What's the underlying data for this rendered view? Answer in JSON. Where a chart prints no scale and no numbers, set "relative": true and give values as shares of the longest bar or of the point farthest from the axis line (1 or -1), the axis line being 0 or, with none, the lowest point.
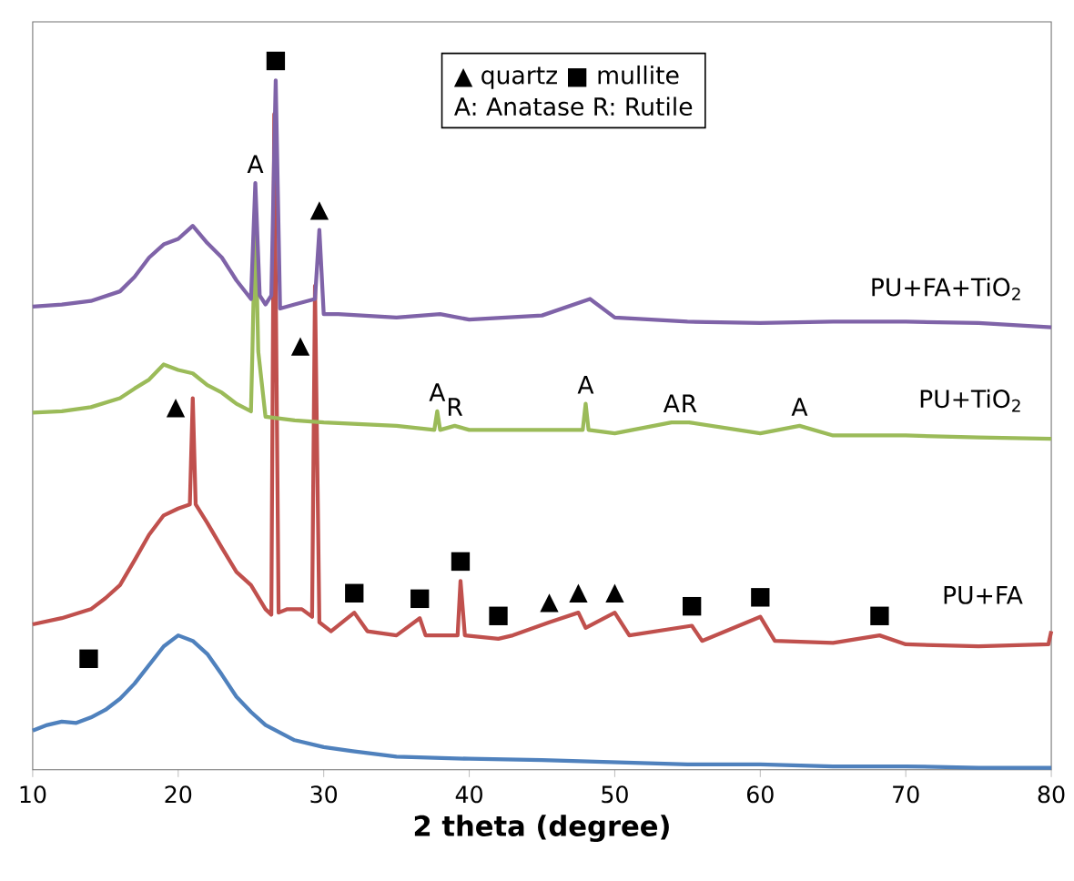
{
  "chart_data": {
    "type": "line",
    "relative": true,
    "xlabel": "2 theta (degree)",
    "xlim": [
      10,
      80
    ],
    "xticks": [
      10,
      20,
      30,
      40,
      50,
      60,
      70,
      80
    ],
    "tick_labels": "x",
    "series": [
      {
        "name": "PU+FA+TiO$_{2}$",
        "color": "#7f63a8",
        "x": [
          10,
          12,
          14,
          16,
          17,
          18,
          19,
          20,
          21,
          22,
          23,
          24,
          25,
          25.3,
          25.6,
          26,
          26.4,
          26.7,
          27.0,
          28,
          29.4,
          29.7,
          30.0,
          31,
          35,
          38,
          40,
          45,
          48.3,
          50,
          55,
          60,
          65,
          70,
          75,
          80
        ],
        "values": [
          0.672,
          0.675,
          0.68,
          0.694,
          0.715,
          0.743,
          0.762,
          0.77,
          0.789,
          0.764,
          0.743,
          0.71,
          0.683,
          0.851,
          0.688,
          0.675,
          0.688,
          1.0,
          0.669,
          0.675,
          0.683,
          0.783,
          0.661,
          0.661,
          0.656,
          0.661,
          0.653,
          0.659,
          0.683,
          0.656,
          0.65,
          0.648,
          0.65,
          0.65,
          0.648,
          0.642
        ]
      },
      {
        "name": "PU+TiO$_{2}$",
        "color": "#9bbb59",
        "x": [
          10,
          12,
          14,
          16,
          17,
          18,
          19,
          20,
          21,
          22,
          23,
          24,
          25,
          25.1,
          25.3,
          25.5,
          26,
          28,
          30,
          35,
          37.6,
          37.8,
          38,
          39.0,
          40,
          47.8,
          48,
          48.2,
          50,
          53.9,
          55.1,
          60,
          62.7,
          65,
          70,
          75,
          80
        ],
        "values": [
          0.518,
          0.52,
          0.526,
          0.539,
          0.553,
          0.566,
          0.588,
          0.58,
          0.575,
          0.558,
          0.547,
          0.531,
          0.52,
          0.607,
          0.805,
          0.607,
          0.512,
          0.507,
          0.504,
          0.499,
          0.493,
          0.52,
          0.493,
          0.499,
          0.493,
          0.493,
          0.531,
          0.493,
          0.488,
          0.504,
          0.504,
          0.488,
          0.499,
          0.485,
          0.485,
          0.482,
          0.48
        ]
      },
      {
        "name": "PU+FA",
        "color": "#c0504d",
        "x": [
          10,
          12,
          14,
          15,
          16,
          17,
          18,
          19,
          20,
          20.8,
          21,
          21.2,
          22,
          23,
          24,
          25,
          26,
          26.4,
          26.6,
          26.9,
          27.5,
          28.5,
          29.2,
          29.4,
          29.7,
          30.5,
          32.1,
          33,
          35,
          36.6,
          37,
          39.2,
          39.4,
          39.7,
          42,
          43,
          45.5,
          47.5,
          48,
          50,
          51,
          55.3,
          56,
          60,
          61,
          65,
          68.2,
          70,
          75,
          79.8,
          80
        ],
        "values": [
          0.211,
          0.22,
          0.233,
          0.249,
          0.268,
          0.304,
          0.341,
          0.369,
          0.379,
          0.385,
          0.539,
          0.385,
          0.358,
          0.322,
          0.287,
          0.268,
          0.233,
          0.225,
          0.951,
          0.228,
          0.233,
          0.233,
          0.222,
          0.702,
          0.214,
          0.201,
          0.228,
          0.201,
          0.195,
          0.22,
          0.195,
          0.195,
          0.274,
          0.195,
          0.19,
          0.195,
          0.214,
          0.228,
          0.206,
          0.228,
          0.195,
          0.209,
          0.187,
          0.222,
          0.187,
          0.184,
          0.195,
          0.182,
          0.179,
          0.182,
          0.201
        ]
      },
      {
        "color": "#4f81bd",
        "x": [
          10,
          11,
          12,
          13,
          14,
          15,
          16,
          17,
          18,
          19,
          20,
          21,
          22,
          23,
          24,
          25,
          26,
          28,
          30,
          32,
          35,
          40,
          45,
          50,
          55,
          60,
          65,
          70,
          75,
          80
        ],
        "values": [
          0.057,
          0.065,
          0.07,
          0.068,
          0.076,
          0.087,
          0.103,
          0.125,
          0.152,
          0.179,
          0.195,
          0.187,
          0.168,
          0.138,
          0.106,
          0.084,
          0.065,
          0.043,
          0.033,
          0.027,
          0.019,
          0.016,
          0.014,
          0.011,
          0.008,
          0.008,
          0.005,
          0.005,
          0.003,
          0.003
        ]
      }
    ],
    "annotations": [
      "▲ quartz  ■ mullite",
      "A: Anatase R: Rutile",
      {
        "text": "■",
        "x": 26.7,
        "y": 1.0
      },
      {
        "text": "A",
        "x": 25.3,
        "y": 0.851
      },
      {
        "text": "▲",
        "x": 29.7,
        "y": 0.783
      },
      {
        "text": "▲",
        "x": 29.4,
        "y": 0.702
      },
      {
        "text": "A",
        "x": 37.8,
        "y": 0.52
      },
      {
        "text": "R",
        "x": 39.0,
        "y": 0.499
      },
      {
        "text": "A",
        "x": 48,
        "y": 0.531
      },
      {
        "text": "A",
        "x": 53.9,
        "y": 0.504
      },
      {
        "text": "R",
        "x": 55.1,
        "y": 0.504
      },
      {
        "text": "A",
        "x": 62.7,
        "y": 0.499
      },
      {
        "text": "▲",
        "x": 21,
        "y": 0.539
      },
      {
        "text": "■",
        "x": 15,
        "y": 0.249
      },
      {
        "text": "■",
        "x": 32.1,
        "y": 0.228
      },
      {
        "text": "■",
        "x": 36.6,
        "y": 0.22
      },
      {
        "text": "■",
        "x": 39.4,
        "y": 0.274
      },
      {
        "text": "■",
        "x": 42,
        "y": 0.195
      },
      {
        "text": "▲",
        "x": 45.5,
        "y": 0.214
      },
      {
        "text": "▲",
        "x": 47.5,
        "y": 0.228
      },
      {
        "text": "▲",
        "x": 50,
        "y": 0.228
      },
      {
        "text": "■",
        "x": 55.3,
        "y": 0.209
      },
      {
        "text": "■",
        "x": 60,
        "y": 0.222
      },
      {
        "text": "■",
        "x": 68.2,
        "y": 0.195
      }
    ]
  }
}
